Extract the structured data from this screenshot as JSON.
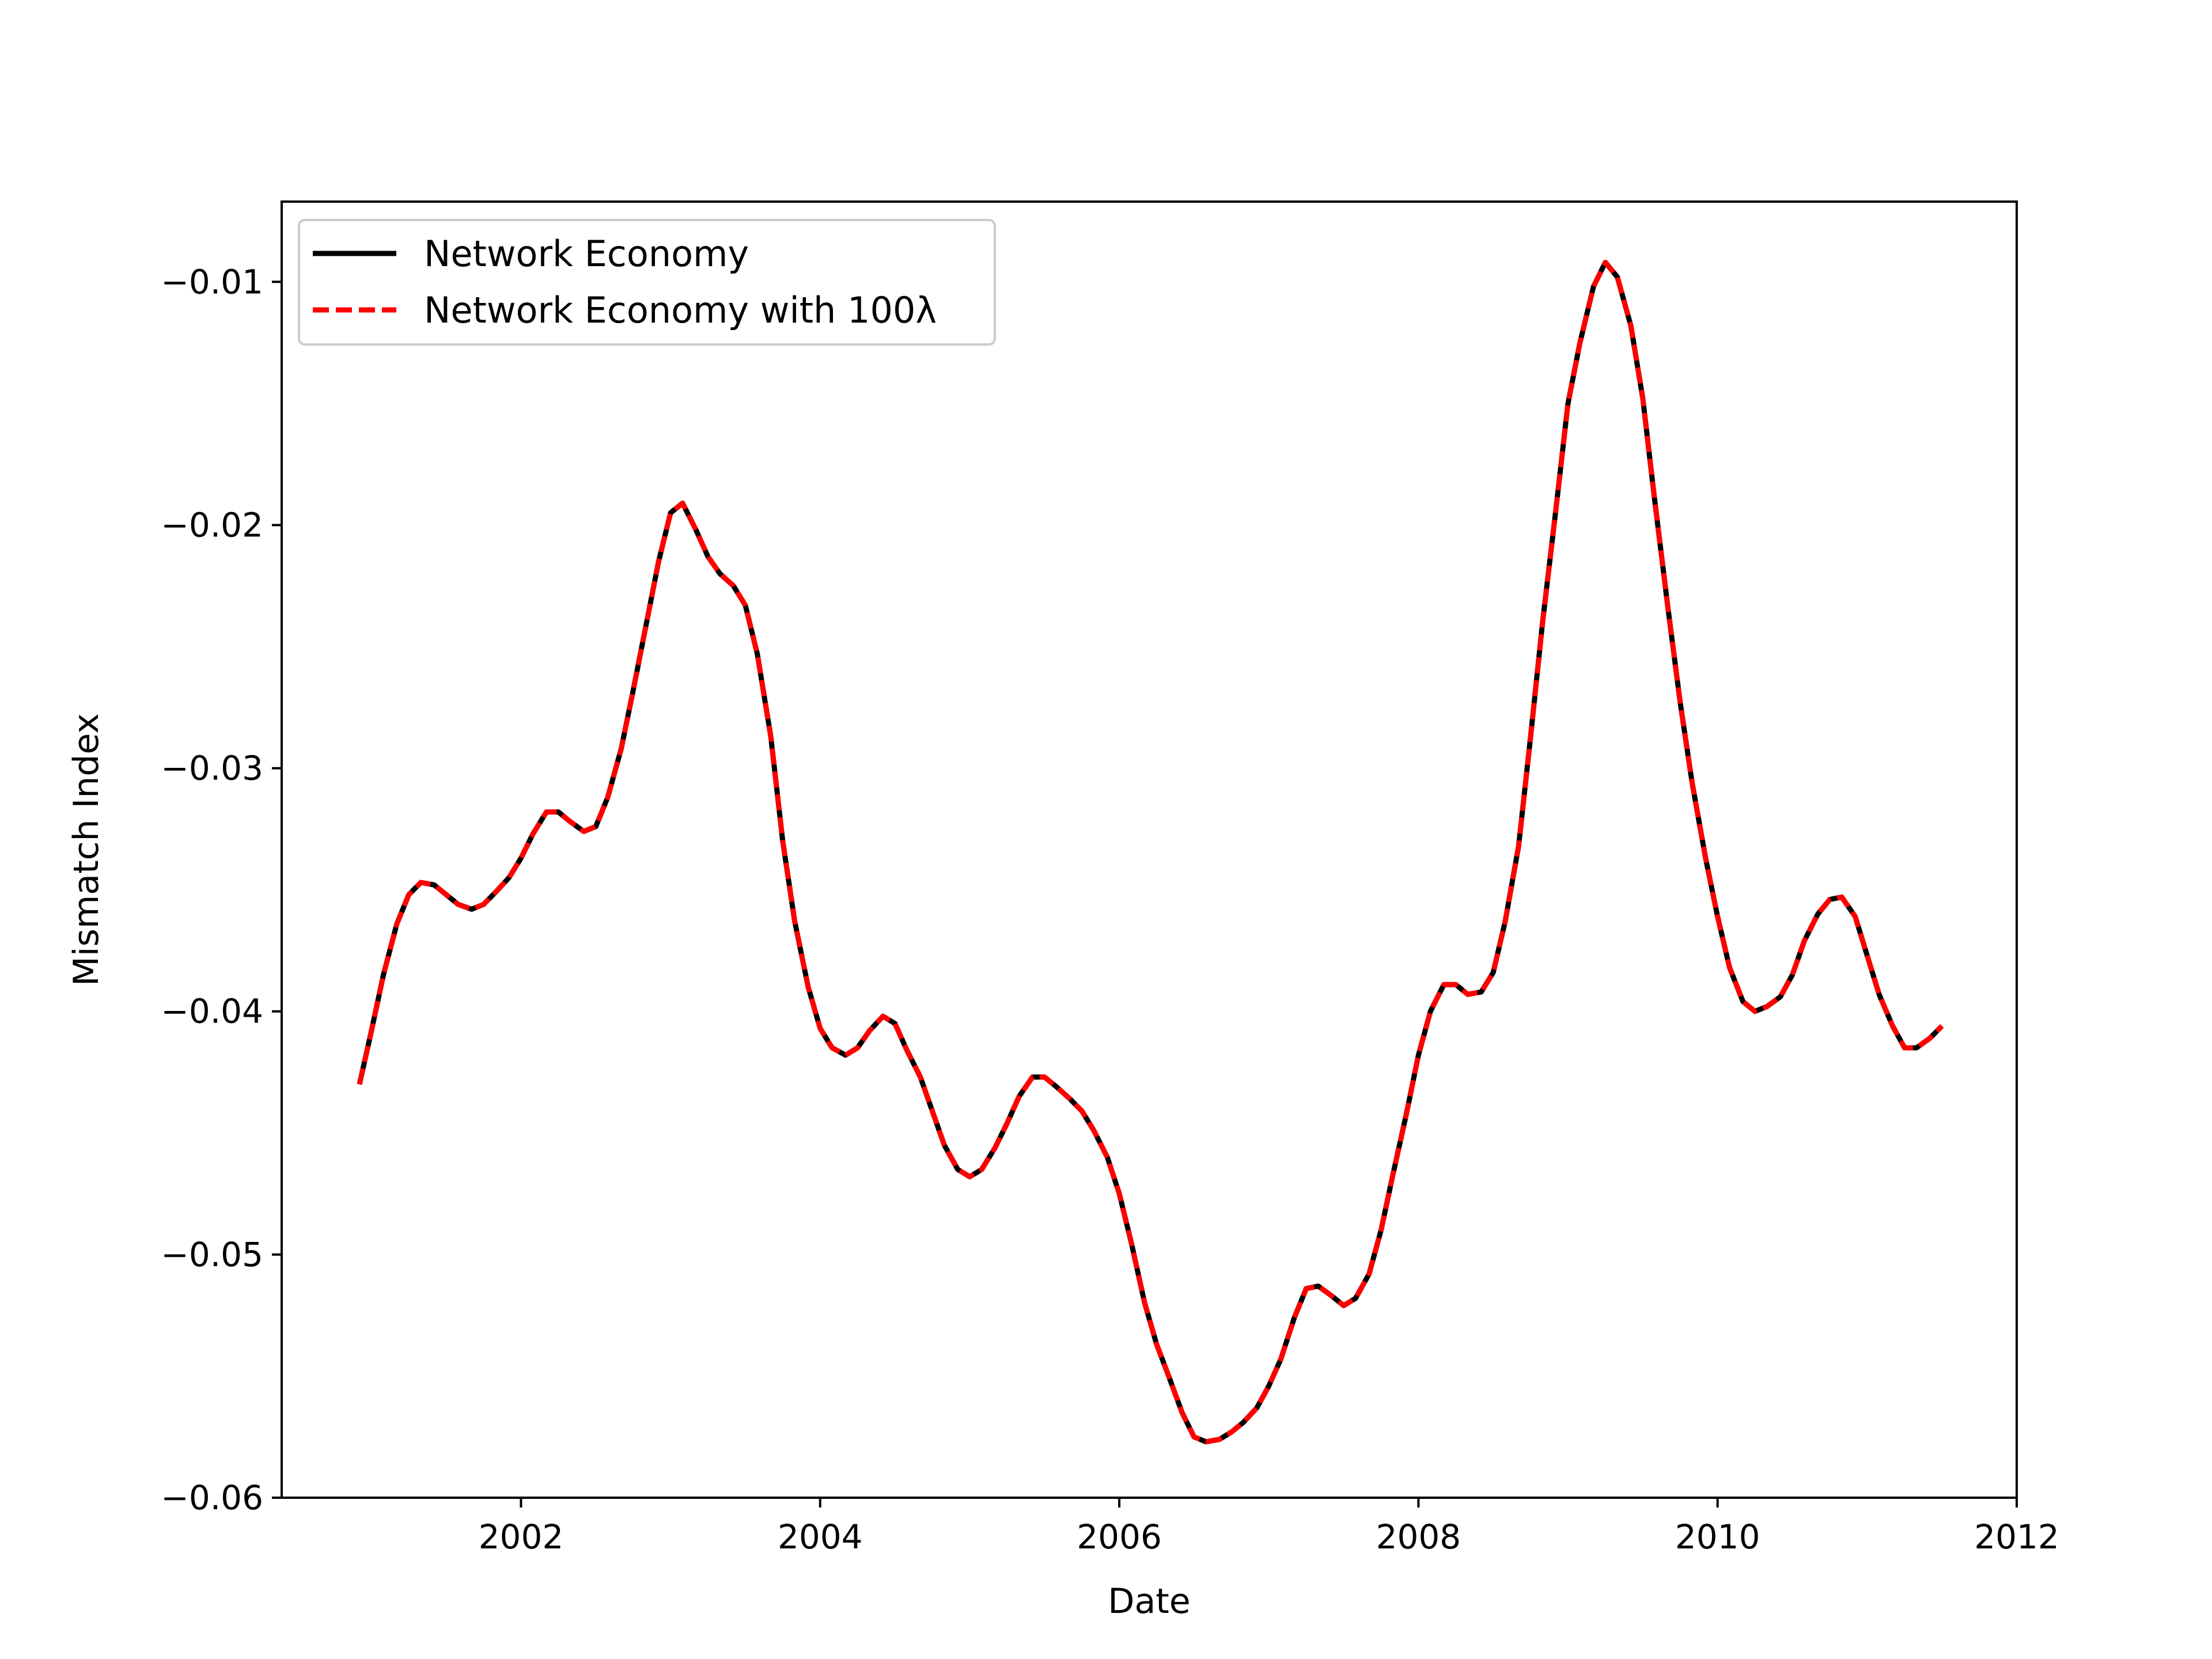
{
  "chart_data": {
    "type": "line",
    "title": "",
    "xlabel": "Date",
    "ylabel": "Mismatch Index",
    "xlim": [
      2000.4,
      2012.0
    ],
    "ylim": [
      -0.06,
      -0.0067
    ],
    "x_ticks": [
      2002,
      2004,
      2006,
      2008,
      2010,
      2012
    ],
    "x_tick_labels": [
      "2002",
      "2004",
      "2006",
      "2008",
      "2010",
      "2012"
    ],
    "y_ticks": [
      -0.06,
      -0.05,
      -0.04,
      -0.03,
      -0.02,
      -0.01
    ],
    "y_tick_labels": [
      "−0.06",
      "−0.05",
      "−0.04",
      "−0.03",
      "−0.02",
      "−0.01"
    ],
    "grid": false,
    "legend_position": "top-left",
    "series": [
      {
        "name": "Network Economy",
        "color": "#000000",
        "style": "solid"
      },
      {
        "name": "Network Economy with 100λ",
        "color": "#ff0000",
        "style": "dashed"
      }
    ],
    "x": [
      2000.92,
      2001.0,
      2001.08,
      2001.17,
      2001.25,
      2001.33,
      2001.42,
      2001.5,
      2001.58,
      2001.67,
      2001.75,
      2001.83,
      2001.92,
      2002.0,
      2002.08,
      2002.17,
      2002.25,
      2002.33,
      2002.42,
      2002.5,
      2002.58,
      2002.67,
      2002.75,
      2002.83,
      2002.92,
      2003.0,
      2003.08,
      2003.17,
      2003.25,
      2003.33,
      2003.42,
      2003.5,
      2003.58,
      2003.67,
      2003.75,
      2003.83,
      2003.92,
      2004.0,
      2004.08,
      2004.17,
      2004.25,
      2004.33,
      2004.42,
      2004.5,
      2004.58,
      2004.67,
      2004.75,
      2004.83,
      2004.92,
      2005.0,
      2005.08,
      2005.17,
      2005.25,
      2005.33,
      2005.42,
      2005.5,
      2005.58,
      2005.67,
      2005.75,
      2005.83,
      2005.92,
      2006.0,
      2006.08,
      2006.17,
      2006.25,
      2006.33,
      2006.42,
      2006.5,
      2006.58,
      2006.67,
      2006.75,
      2006.83,
      2006.92,
      2007.0,
      2007.08,
      2007.17,
      2007.25,
      2007.33,
      2007.42,
      2007.5,
      2007.58,
      2007.67,
      2007.75,
      2007.83,
      2007.92,
      2008.0,
      2008.08,
      2008.17,
      2008.25,
      2008.33,
      2008.42,
      2008.5,
      2008.58,
      2008.67,
      2008.75,
      2008.83,
      2008.92,
      2009.0,
      2009.08,
      2009.17,
      2009.25,
      2009.33,
      2009.42,
      2009.5,
      2009.58,
      2009.67,
      2009.75,
      2009.83,
      2009.92,
      2010.0,
      2010.08,
      2010.17,
      2010.25,
      2010.33,
      2010.42,
      2010.5,
      2010.58,
      2010.67,
      2010.75,
      2010.83,
      2010.92,
      2011.0,
      2011.08,
      2011.17,
      2011.25,
      2011.33,
      2011.42,
      2011.5
    ],
    "y": [
      -0.043,
      -0.0408,
      -0.0385,
      -0.0364,
      -0.0352,
      -0.0347,
      -0.0348,
      -0.0352,
      -0.0356,
      -0.0358,
      -0.0356,
      -0.0351,
      -0.0345,
      -0.0337,
      -0.0327,
      -0.0318,
      -0.0318,
      -0.0322,
      -0.0326,
      -0.0324,
      -0.0312,
      -0.0292,
      -0.0268,
      -0.0243,
      -0.0215,
      -0.0195,
      -0.0191,
      -0.0202,
      -0.0213,
      -0.022,
      -0.0225,
      -0.0233,
      -0.0253,
      -0.0287,
      -0.033,
      -0.0363,
      -0.039,
      -0.0407,
      -0.0415,
      -0.0418,
      -0.0415,
      -0.0408,
      -0.0402,
      -0.0405,
      -0.0416,
      -0.0427,
      -0.0441,
      -0.0455,
      -0.0465,
      -0.0468,
      -0.0465,
      -0.0456,
      -0.0446,
      -0.0435,
      -0.0427,
      -0.0427,
      -0.0431,
      -0.0436,
      -0.0441,
      -0.0449,
      -0.046,
      -0.0475,
      -0.0495,
      -0.052,
      -0.0537,
      -0.055,
      -0.0565,
      -0.0575,
      -0.0577,
      -0.0576,
      -0.0573,
      -0.0569,
      -0.0563,
      -0.0554,
      -0.0543,
      -0.0526,
      -0.0514,
      -0.0513,
      -0.0517,
      -0.0521,
      -0.0518,
      -0.0508,
      -0.049,
      -0.0467,
      -0.0442,
      -0.0418,
      -0.04,
      -0.0389,
      -0.0389,
      -0.0393,
      -0.0392,
      -0.0384,
      -0.0363,
      -0.0332,
      -0.0287,
      -0.024,
      -0.0193,
      -0.015,
      -0.0125,
      -0.0102,
      -0.0092,
      -0.0098,
      -0.0118,
      -0.0148,
      -0.019,
      -0.0235,
      -0.0273,
      -0.0306,
      -0.0337,
      -0.0361,
      -0.0382,
      -0.0396,
      -0.04,
      -0.0398,
      -0.0394,
      -0.0385,
      -0.0371,
      -0.036,
      -0.0354,
      -0.0353,
      -0.0361,
      -0.0377,
      -0.0393,
      -0.0406,
      -0.0415,
      -0.0415,
      -0.0411,
      -0.0406
    ]
  }
}
